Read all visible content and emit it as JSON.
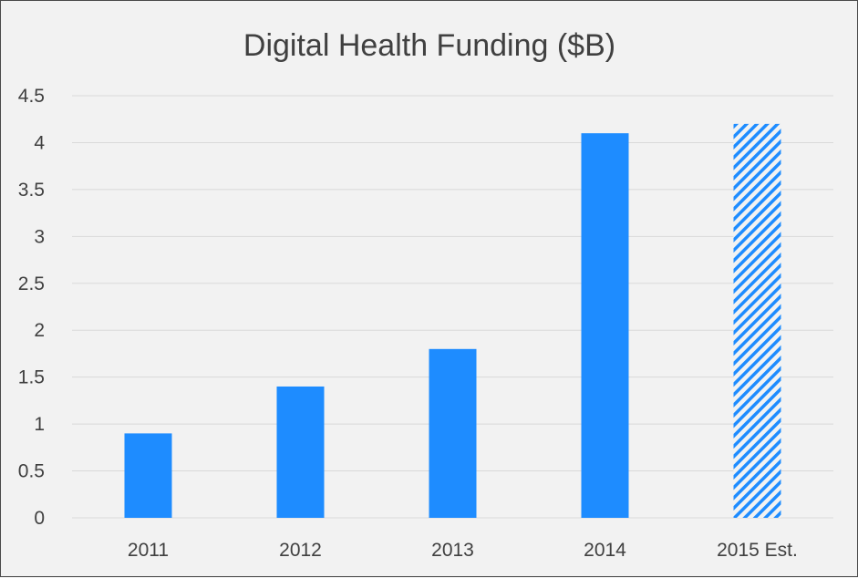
{
  "chart_data": {
    "type": "bar",
    "title": "Digital Health Funding ($B)",
    "xlabel": "",
    "ylabel": "",
    "categories": [
      "2011",
      "2012",
      "2013",
      "2014",
      "2015 Est."
    ],
    "values": [
      0.9,
      1.4,
      1.8,
      4.1,
      4.2
    ],
    "estimated": [
      false,
      false,
      false,
      false,
      true
    ],
    "ylim": [
      0,
      4.5
    ],
    "yticks": [
      "0",
      "0.5",
      "1",
      "1.5",
      "2",
      "2.5",
      "3",
      "3.5",
      "4",
      "4.5"
    ],
    "grid": true,
    "legend": "none",
    "colors": {
      "bar": "#1e8cff",
      "background": "#f2f2f2",
      "grid": "#d9d9d9",
      "text": "#404040"
    }
  }
}
